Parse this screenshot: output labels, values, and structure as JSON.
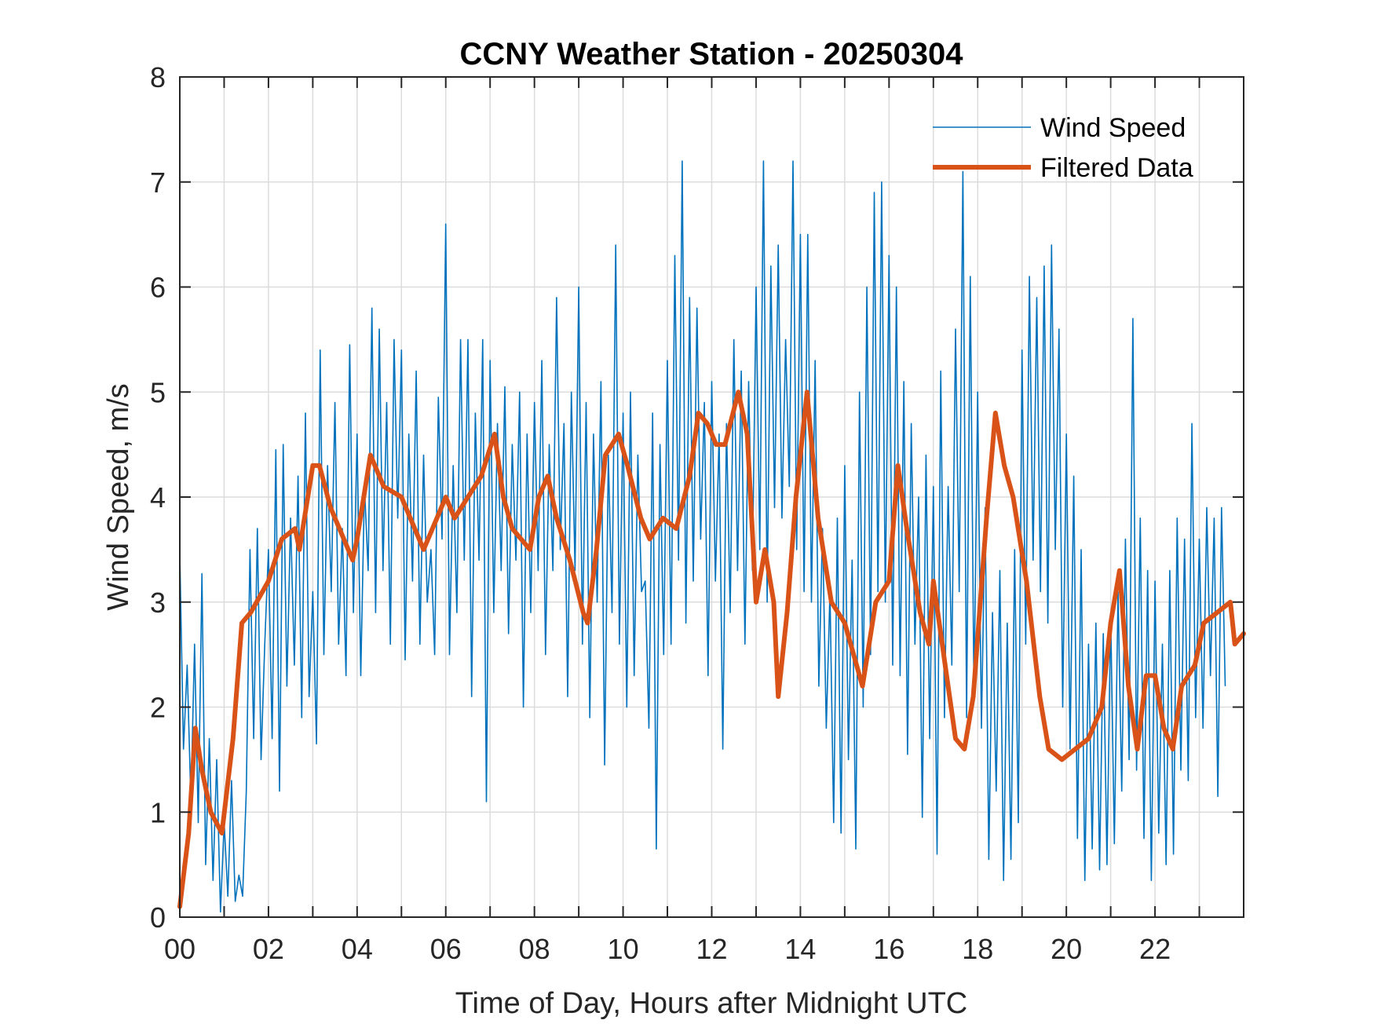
{
  "chart_data": {
    "type": "line",
    "title": "CCNY Weather Station - 20250304",
    "xlabel": "Time of Day, Hours after Midnight UTC",
    "ylabel": "Wind Speed, m/s",
    "xlim": [
      0,
      24
    ],
    "ylim": [
      0,
      8
    ],
    "grid": true,
    "legend_position": "top-right",
    "x_ticks": [
      0,
      2,
      4,
      6,
      8,
      10,
      12,
      14,
      16,
      18,
      20,
      22
    ],
    "x_tick_labels": [
      "00",
      "02",
      "04",
      "06",
      "08",
      "10",
      "12",
      "14",
      "16",
      "18",
      "20",
      "22"
    ],
    "x_minor_ticks_hourly": true,
    "y_ticks": [
      0,
      1,
      2,
      3,
      4,
      5,
      6,
      7,
      8
    ],
    "y_tick_labels": [
      "0",
      "1",
      "2",
      "3",
      "4",
      "5",
      "6",
      "7",
      "8"
    ],
    "series": [
      {
        "name": "Wind Speed",
        "color": "#0072BD",
        "style": "thin",
        "x_step_hours": 0.0833333,
        "values": [
          3.45,
          1.6,
          2.4,
          1.1,
          2.6,
          0.9,
          3.27,
          0.5,
          1.7,
          0.35,
          1.5,
          0.05,
          0.9,
          0.2,
          1.3,
          0.15,
          0.4,
          0.2,
          1.2,
          3.5,
          1.7,
          3.7,
          1.5,
          2.6,
          3.5,
          1.7,
          4.45,
          1.2,
          4.5,
          2.2,
          3.8,
          2.4,
          4.2,
          1.9,
          4.8,
          2.1,
          3.1,
          1.65,
          5.4,
          2.5,
          4.3,
          3.1,
          4.9,
          2.6,
          3.7,
          2.3,
          5.45,
          2.9,
          4.6,
          2.3,
          4.1,
          3.3,
          5.8,
          2.9,
          5.6,
          3.3,
          4.9,
          2.6,
          5.5,
          3.8,
          5.4,
          2.45,
          4.6,
          3.2,
          5.2,
          2.6,
          4.4,
          3.0,
          3.5,
          2.5,
          4.95,
          3.6,
          6.6,
          2.5,
          4.3,
          2.9,
          5.5,
          3.4,
          5.5,
          2.1,
          4.8,
          3.4,
          5.5,
          1.1,
          5.3,
          2.9,
          4.7,
          3.3,
          5.05,
          2.7,
          4.5,
          3.4,
          5.0,
          2.0,
          4.6,
          2.9,
          4.9,
          3.3,
          5.3,
          2.5,
          4.5,
          3.3,
          5.9,
          3.5,
          4.7,
          2.1,
          5.0,
          3.3,
          6.0,
          2.6,
          4.9,
          1.9,
          4.6,
          3.0,
          5.1,
          1.45,
          4.4,
          2.9,
          6.4,
          2.6,
          4.8,
          2.0,
          5.0,
          2.3,
          4.4,
          3.1,
          3.2,
          1.8,
          4.8,
          0.65,
          4.5,
          2.5,
          5.3,
          2.6,
          6.3,
          3.4,
          7.2,
          2.8,
          5.9,
          3.2,
          5.8,
          3.6,
          4.9,
          2.3,
          5.1,
          3.2,
          4.6,
          1.6,
          4.7,
          2.9,
          5.5,
          3.3,
          5.2,
          2.6,
          5.1,
          3.3,
          6.0,
          3.5,
          7.2,
          3.0,
          6.2,
          3.9,
          6.4,
          3.8,
          5.5,
          4.1,
          7.2,
          3.5,
          6.5,
          3.1,
          6.5,
          3.0,
          5.3,
          2.2,
          3.7,
          1.8,
          3.1,
          0.9,
          3.8,
          0.8,
          4.3,
          1.5,
          3.4,
          0.65,
          5.0,
          2.0,
          6.0,
          2.5,
          6.9,
          3.1,
          7.0,
          3.0,
          6.3,
          2.4,
          6.0,
          2.3,
          5.1,
          1.55,
          4.7,
          2.6,
          4.0,
          0.95,
          4.4,
          1.7,
          4.1,
          0.6,
          5.2,
          1.9,
          4.1,
          2.4,
          5.6,
          3.1,
          7.1,
          1.9,
          6.1,
          2.1,
          5.0,
          1.8,
          3.9,
          0.55,
          2.9,
          1.2,
          3.3,
          0.35,
          2.8,
          0.55,
          3.5,
          0.9,
          5.4,
          2.6,
          6.1,
          3.4,
          5.9,
          3.1,
          6.2,
          2.8,
          6.4,
          3.5,
          5.6,
          2.0,
          4.6,
          1.6,
          4.2,
          0.75,
          3.5,
          0.35,
          2.6,
          0.65,
          2.8,
          0.45,
          2.7,
          0.5,
          2.9,
          0.7,
          3.1,
          1.2,
          3.6,
          1.5,
          5.7,
          1.4,
          3.8,
          0.75,
          3.3,
          0.35,
          3.2,
          0.8,
          2.6,
          0.5,
          3.3,
          0.6,
          3.8,
          1.4,
          3.6,
          1.3,
          4.7,
          1.9,
          3.6,
          1.8,
          3.9,
          2.3,
          3.8,
          1.15,
          3.9,
          2.2
        ]
      },
      {
        "name": "Filtered Data",
        "color": "#D95319",
        "style": "thick",
        "points": [
          [
            0,
            0.1
          ],
          [
            0.2,
            0.8
          ],
          [
            0.35,
            1.8
          ],
          [
            0.5,
            1.4
          ],
          [
            0.7,
            1.0
          ],
          [
            0.95,
            0.8
          ],
          [
            1.2,
            1.7
          ],
          [
            1.4,
            2.8
          ],
          [
            1.6,
            2.9
          ],
          [
            2.0,
            3.2
          ],
          [
            2.3,
            3.6
          ],
          [
            2.6,
            3.7
          ],
          [
            2.7,
            3.5
          ],
          [
            3.0,
            4.3
          ],
          [
            3.15,
            4.3
          ],
          [
            3.4,
            3.9
          ],
          [
            3.7,
            3.6
          ],
          [
            3.9,
            3.4
          ],
          [
            4.0,
            3.6
          ],
          [
            4.3,
            4.4
          ],
          [
            4.6,
            4.1
          ],
          [
            5.0,
            4.0
          ],
          [
            5.2,
            3.8
          ],
          [
            5.5,
            3.5
          ],
          [
            5.8,
            3.8
          ],
          [
            6.0,
            4.0
          ],
          [
            6.2,
            3.8
          ],
          [
            6.5,
            4.0
          ],
          [
            6.8,
            4.2
          ],
          [
            7.1,
            4.6
          ],
          [
            7.3,
            4.0
          ],
          [
            7.5,
            3.7
          ],
          [
            7.7,
            3.6
          ],
          [
            7.9,
            3.5
          ],
          [
            8.1,
            4.0
          ],
          [
            8.3,
            4.2
          ],
          [
            8.5,
            3.8
          ],
          [
            8.8,
            3.4
          ],
          [
            9.1,
            2.9
          ],
          [
            9.2,
            2.8
          ],
          [
            9.4,
            3.5
          ],
          [
            9.6,
            4.4
          ],
          [
            9.9,
            4.6
          ],
          [
            10.1,
            4.3
          ],
          [
            10.4,
            3.8
          ],
          [
            10.6,
            3.6
          ],
          [
            10.9,
            3.8
          ],
          [
            11.2,
            3.7
          ],
          [
            11.5,
            4.2
          ],
          [
            11.7,
            4.8
          ],
          [
            11.9,
            4.7
          ],
          [
            12.1,
            4.5
          ],
          [
            12.3,
            4.5
          ],
          [
            12.6,
            5.0
          ],
          [
            12.8,
            4.6
          ],
          [
            13.0,
            3.0
          ],
          [
            13.2,
            3.5
          ],
          [
            13.4,
            3.0
          ],
          [
            13.5,
            2.1
          ],
          [
            13.7,
            2.9
          ],
          [
            13.9,
            4.0
          ],
          [
            14.15,
            5.0
          ],
          [
            14.4,
            3.8
          ],
          [
            14.7,
            3.0
          ],
          [
            15.0,
            2.8
          ],
          [
            15.2,
            2.5
          ],
          [
            15.4,
            2.2
          ],
          [
            15.7,
            3.0
          ],
          [
            16.0,
            3.2
          ],
          [
            16.2,
            4.3
          ],
          [
            16.4,
            3.7
          ],
          [
            16.7,
            2.9
          ],
          [
            16.9,
            2.6
          ],
          [
            17.0,
            3.2
          ],
          [
            17.3,
            2.3
          ],
          [
            17.5,
            1.7
          ],
          [
            17.7,
            1.6
          ],
          [
            17.9,
            2.1
          ],
          [
            18.2,
            3.8
          ],
          [
            18.4,
            4.8
          ],
          [
            18.6,
            4.3
          ],
          [
            18.8,
            4.0
          ],
          [
            19.1,
            3.2
          ],
          [
            19.4,
            2.1
          ],
          [
            19.6,
            1.6
          ],
          [
            19.9,
            1.5
          ],
          [
            20.2,
            1.6
          ],
          [
            20.5,
            1.7
          ],
          [
            20.8,
            2.0
          ],
          [
            21.0,
            2.8
          ],
          [
            21.2,
            3.3
          ],
          [
            21.4,
            2.2
          ],
          [
            21.6,
            1.6
          ],
          [
            21.8,
            2.3
          ],
          [
            22.0,
            2.3
          ],
          [
            22.2,
            1.8
          ],
          [
            22.4,
            1.6
          ],
          [
            22.6,
            2.2
          ],
          [
            22.9,
            2.4
          ],
          [
            23.1,
            2.8
          ],
          [
            23.4,
            2.9
          ],
          [
            23.7,
            3.0
          ],
          [
            23.8,
            2.6
          ],
          [
            24.0,
            2.7
          ]
        ]
      }
    ]
  }
}
